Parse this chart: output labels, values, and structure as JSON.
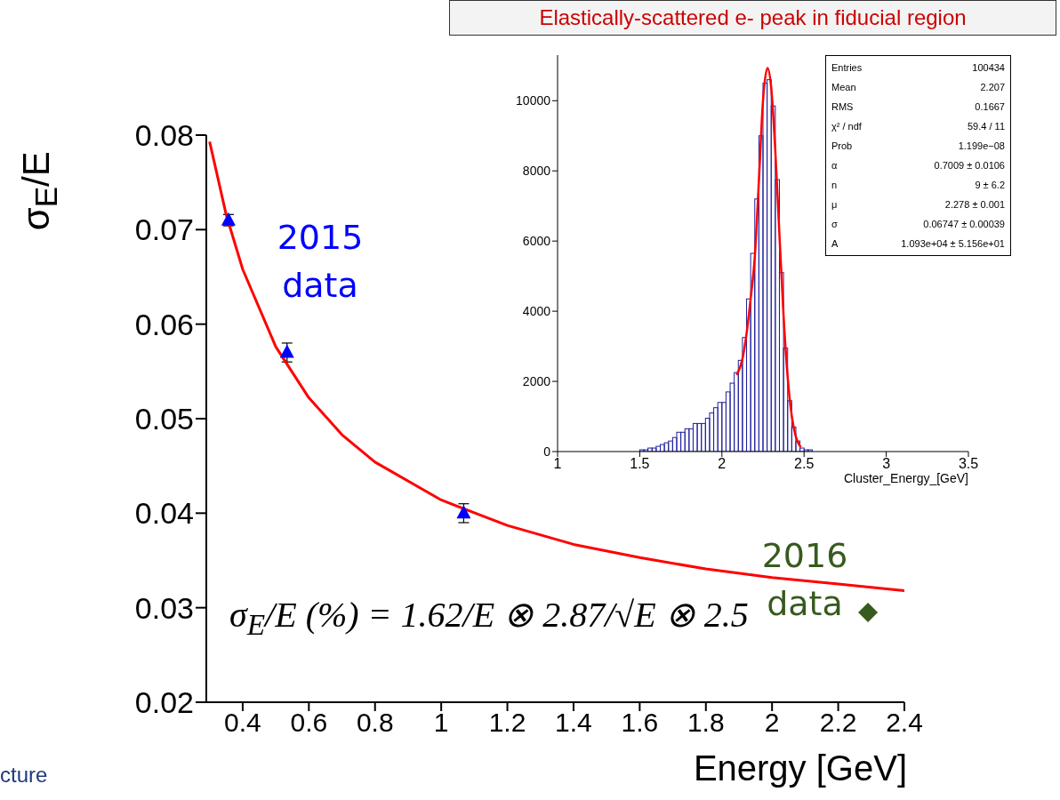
{
  "chart_data": [
    {
      "type": "scatter",
      "xlabel": "Energy [GeV]",
      "ylabel": "σ$_{E}$/E",
      "xlim": [
        0.29,
        2.4
      ],
      "xticks": [
        0.4,
        0.6,
        0.8,
        1,
        1.2,
        1.4,
        1.6,
        1.8,
        2,
        2.2,
        2.4
      ],
      "ylim": [
        0.02,
        0.08
      ],
      "yticks": [
        0.02,
        0.03,
        0.04,
        0.05,
        0.06,
        0.07,
        0.08
      ],
      "series": [
        {
          "name": "2015 data",
          "marker": "triangle",
          "color": "#0000ff",
          "x": [
            0.357,
            0.534,
            1.068
          ],
          "values": [
            0.071,
            0.057,
            0.04
          ],
          "errors": [
            0.0006,
            0.001,
            0.001
          ]
        },
        {
          "name": "2016 data",
          "marker": "diamond",
          "color": "#375a1f",
          "x": [
            2.29
          ],
          "values": [
            0.0295
          ]
        },
        {
          "type": "line",
          "marker": "none",
          "line_style": "solid",
          "color": "#ff0000",
          "x": [
            0.3,
            0.35,
            0.4,
            0.5,
            0.6,
            0.7,
            0.8,
            1.0,
            1.2,
            1.4,
            1.6,
            1.8,
            2.0,
            2.2,
            2.4
          ],
          "values": [
            0.0793,
            0.0716,
            0.0658,
            0.0576,
            0.0522,
            0.0483,
            0.0454,
            0.0414,
            0.0387,
            0.0367,
            0.0353,
            0.0341,
            0.0332,
            0.0325,
            0.0318
          ]
        }
      ],
      "annotations": [
        "σ$_{E}$/E (%) = 1.62/E ⊗ 2.87/√E ⊗ 2.5",
        "cture"
      ]
    },
    {
      "type": "histogram",
      "title": "Elastically-scattered e- peak in fiducial region",
      "xlabel": "Cluster_Energy_[GeV]",
      "color": "#1f1f9e",
      "xlim": [
        1,
        3.5
      ],
      "xticks": [
        1,
        1.5,
        2,
        2.5,
        3,
        3.5
      ],
      "ylim": [
        0,
        11300
      ],
      "yticks": [
        0,
        2000,
        4000,
        6000,
        8000,
        10000
      ],
      "bins": [
        1.5,
        1.525,
        1.55,
        1.575,
        1.6,
        1.625,
        1.65,
        1.675,
        1.7,
        1.725,
        1.75,
        1.775,
        1.8,
        1.825,
        1.85,
        1.875,
        1.9,
        1.925,
        1.95,
        1.975,
        2,
        2.025,
        2.05,
        2.075,
        2.1,
        2.125,
        2.15,
        2.175,
        2.2,
        2.225,
        2.25,
        2.275,
        2.3,
        2.325,
        2.35,
        2.375,
        2.4,
        2.425,
        2.45,
        2.475,
        2.5,
        2.525,
        2.55
      ],
      "values": [
        50,
        50,
        100,
        100,
        150,
        200,
        250,
        300,
        400,
        550,
        550,
        650,
        650,
        800,
        800,
        800,
        950,
        1100,
        1250,
        1400,
        1400,
        1700,
        1950,
        2250,
        2600,
        3250,
        4350,
        5650,
        7200,
        9000,
        10500,
        10600,
        9850,
        7750,
        5100,
        2950,
        1450,
        700,
        300,
        100,
        50,
        50
      ],
      "series": [
        {
          "type": "line",
          "marker": "none",
          "color": "#ff0000",
          "x": [
            2.09,
            2.125,
            2.15,
            2.175,
            2.2,
            2.225,
            2.25,
            2.278,
            2.3,
            2.325,
            2.35,
            2.375,
            2.4,
            2.425,
            2.45,
            2.48
          ],
          "values": [
            2180,
            2640,
            3360,
            4360,
            5540,
            7700,
            10000,
            10930,
            10370,
            8570,
            6190,
            3890,
            2130,
            1020,
            420,
            120
          ]
        }
      ],
      "annotations": [
        "Entries",
        "100434",
        "Mean",
        "2.207",
        "RMS",
        "0.1667",
        "χ² / ndf",
        "59.4 / 11",
        "Prob",
        "1.199e−08",
        "α",
        "0.7009 ± 0.0106",
        "n",
        "9 ± 6.2",
        "μ",
        "2.278 ± 0.001",
        "σ",
        "0.06747 ± 0.00039",
        "A",
        "1.093e+04 ± 5.156e+01"
      ]
    }
  ]
}
